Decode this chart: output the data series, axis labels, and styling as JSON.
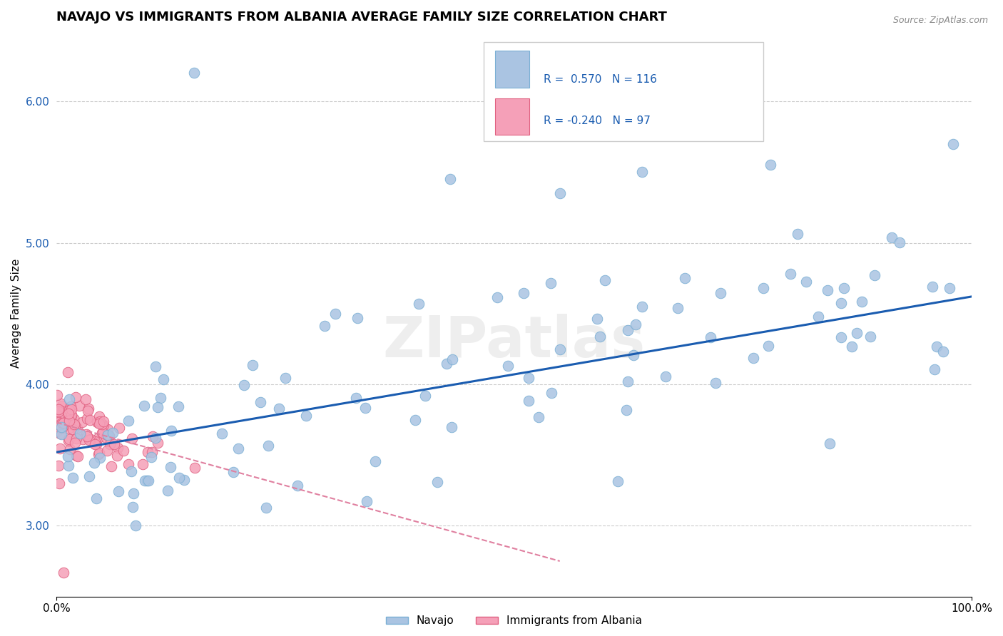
{
  "title": "NAVAJO VS IMMIGRANTS FROM ALBANIA AVERAGE FAMILY SIZE CORRELATION CHART",
  "source": "Source: ZipAtlas.com",
  "ylabel": "Average Family Size",
  "xlim": [
    0,
    100
  ],
  "ylim": [
    2.5,
    6.5
  ],
  "yticks": [
    3.0,
    4.0,
    5.0,
    6.0
  ],
  "xtick_labels": [
    "0.0%",
    "100.0%"
  ],
  "navajo_r": 0.57,
  "navajo_n": 116,
  "albania_r": -0.24,
  "albania_n": 97,
  "navajo_color": "#aac4e2",
  "navajo_edge": "#7aafd4",
  "albania_color": "#f5a0b8",
  "albania_edge": "#e06080",
  "trend_blue": "#1a5cb0",
  "trend_pink": "#e080a0",
  "watermark": "ZIPatlas",
  "title_fontsize": 13,
  "axis_label_fontsize": 11,
  "tick_fontsize": 11,
  "nav_trend_x0": 0,
  "nav_trend_y0": 3.52,
  "nav_trend_x1": 100,
  "nav_trend_y1": 4.62,
  "alb_trend_x0": 0,
  "alb_trend_y0": 3.73,
  "alb_trend_x1": 55,
  "alb_trend_y1": 2.75
}
